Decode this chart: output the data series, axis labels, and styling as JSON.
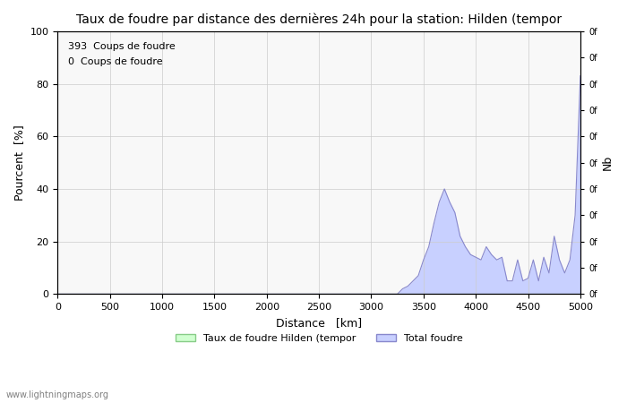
{
  "title": "Taux de foudre par distance des dernières 24h pour la station: Hilden (tempor",
  "xlabel": "Distance   [km]",
  "ylabel": "Pourcent  [%]",
  "ylabel_right": "Nb",
  "legend_label1": "Taux de foudre Hilden (tempor",
  "legend_label2": "Total foudre",
  "annotation1": "393  Coups de foudre",
  "annotation2": "0  Coups de foudre",
  "xlim": [
    0,
    5000
  ],
  "ylim": [
    0,
    100
  ],
  "xticks": [
    0,
    500,
    1000,
    1500,
    2000,
    2500,
    3000,
    3500,
    4000,
    4500,
    5000
  ],
  "yticks": [
    0,
    20,
    40,
    60,
    80,
    100
  ],
  "right_ytick_labels": [
    "0f",
    "0f",
    "0f",
    "0f",
    "0f",
    "0f",
    "0f",
    "0f",
    "0f",
    "0f",
    "0f"
  ],
  "watermark": "www.lightningmaps.org",
  "bg_color": "#ffffff",
  "plot_bg_color": "#f8f8f8",
  "grid_color": "#cccccc",
  "fill_color1": "#c8d0ff",
  "line_color1": "#8888cc",
  "fill_color2": "#d0ffd0",
  "line_color2": "#88cc88",
  "data_x": [
    0,
    50,
    100,
    150,
    200,
    250,
    300,
    350,
    400,
    450,
    500,
    550,
    600,
    650,
    700,
    750,
    800,
    850,
    900,
    950,
    1000,
    1050,
    1100,
    1150,
    1200,
    1250,
    1300,
    1350,
    1400,
    1450,
    1500,
    1550,
    1600,
    1650,
    1700,
    1750,
    1800,
    1850,
    1900,
    1950,
    2000,
    2050,
    2100,
    2150,
    2200,
    2250,
    2300,
    2350,
    2400,
    2450,
    2500,
    2550,
    2600,
    2650,
    2700,
    2750,
    2800,
    2850,
    2900,
    2950,
    3000,
    3050,
    3100,
    3150,
    3200,
    3250,
    3300,
    3350,
    3400,
    3450,
    3500,
    3550,
    3600,
    3650,
    3700,
    3750,
    3800,
    3850,
    3900,
    3950,
    4000,
    4050,
    4100,
    4150,
    4200,
    4250,
    4300,
    4350,
    4400,
    4450,
    4500,
    4550,
    4600,
    4650,
    4700,
    4750,
    4800,
    4850,
    4900,
    4950,
    5000
  ],
  "data_y_total": [
    0,
    0,
    0,
    0,
    0,
    0,
    0,
    0,
    0,
    0,
    0,
    0,
    0,
    0,
    0,
    0,
    0,
    0,
    0,
    0,
    0,
    0,
    0,
    0,
    0,
    0,
    0,
    0,
    0,
    0,
    0,
    0,
    0,
    0,
    0,
    0,
    0,
    0,
    0,
    0,
    0,
    0,
    0,
    0,
    0,
    0,
    0,
    0,
    0,
    0,
    0,
    0,
    0,
    0,
    0,
    0,
    0,
    0,
    0,
    0,
    0,
    0,
    0,
    0,
    0,
    0,
    2,
    3,
    5,
    7,
    13,
    18,
    27,
    35,
    40,
    35,
    31,
    22,
    18,
    15,
    14,
    13,
    18,
    15,
    13,
    14,
    5,
    5,
    13,
    5,
    6,
    13,
    5,
    14,
    8,
    22,
    13,
    8,
    13,
    30,
    83
  ],
  "data_y_station": [
    0,
    0,
    0,
    0,
    0,
    0,
    0,
    0,
    0,
    0,
    0,
    0,
    0,
    0,
    0,
    0,
    0,
    0,
    0,
    0,
    0,
    0,
    0,
    0,
    0,
    0,
    0,
    0,
    0,
    0,
    0,
    0,
    0,
    0,
    0,
    0,
    0,
    0,
    0,
    0,
    0,
    0,
    0,
    0,
    0,
    0,
    0,
    0,
    0,
    0,
    0,
    0,
    0,
    0,
    0,
    0,
    0,
    0,
    0,
    0,
    0,
    0,
    0,
    0,
    0,
    0,
    0,
    0,
    0,
    0,
    0,
    0,
    0,
    0,
    0,
    0,
    0,
    0,
    0,
    0,
    0,
    0,
    0,
    0,
    0,
    0,
    0,
    0,
    0,
    0,
    0,
    0,
    0,
    0,
    0,
    0,
    0,
    0,
    0,
    0,
    0
  ]
}
